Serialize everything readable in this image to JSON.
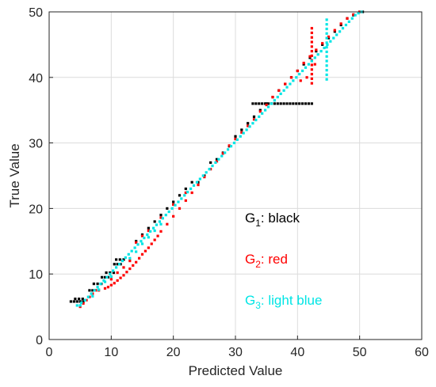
{
  "chart_data": {
    "type": "scatter",
    "xlabel": "Predicted Value",
    "ylabel": "True Value",
    "xlim": [
      0,
      60
    ],
    "ylim": [
      0,
      50
    ],
    "xticks": [
      "0",
      "10",
      "20",
      "30",
      "40",
      "50",
      "60"
    ],
    "yticks": [
      "0",
      "10",
      "20",
      "30",
      "40",
      "50"
    ],
    "grid": true,
    "legend_position": "lower-right",
    "legend": [
      {
        "prefix": "G",
        "sub": "1",
        "text": ": black",
        "color": "#000000"
      },
      {
        "prefix": "G",
        "sub": "2",
        "text": ": red",
        "color": "#ff0000"
      },
      {
        "prefix": "G",
        "sub": "3",
        "text": ": light blue",
        "color": "#00e5e5"
      }
    ],
    "series": [
      {
        "color": "#000000",
        "points": [
          [
            3.5,
            5.8
          ],
          [
            4.0,
            5.8
          ],
          [
            4.5,
            5.8
          ],
          [
            5.0,
            5.8
          ],
          [
            5.5,
            5.8
          ],
          [
            4.2,
            6.2
          ],
          [
            4.8,
            6.2
          ],
          [
            5.4,
            6.2
          ],
          [
            6.5,
            7.5
          ],
          [
            7.0,
            7.5
          ],
          [
            7.5,
            7.5
          ],
          [
            7.2,
            8.5
          ],
          [
            7.8,
            8.5
          ],
          [
            8.4,
            8.5
          ],
          [
            8.5,
            9.5
          ],
          [
            9.0,
            9.5
          ],
          [
            9.5,
            9.5
          ],
          [
            9.2,
            10.2
          ],
          [
            9.8,
            10.2
          ],
          [
            10.4,
            10.2
          ],
          [
            10.5,
            11.5
          ],
          [
            11.0,
            11.5
          ],
          [
            11.5,
            11.5
          ],
          [
            10.8,
            12.2
          ],
          [
            11.4,
            12.2
          ],
          [
            12.0,
            12.2
          ],
          [
            14.0,
            15.0
          ],
          [
            15.0,
            16.0
          ],
          [
            16.0,
            17.0
          ],
          [
            17.0,
            18.0
          ],
          [
            18.0,
            19.0
          ],
          [
            19.0,
            20.0
          ],
          [
            20.0,
            21.0
          ],
          [
            21.0,
            22.0
          ],
          [
            22.0,
            23.0
          ],
          [
            23.0,
            24.0
          ],
          [
            24.0,
            24.0
          ],
          [
            25.0,
            25.0
          ],
          [
            26.0,
            27.0
          ],
          [
            27.0,
            27.5
          ],
          [
            28.0,
            28.5
          ],
          [
            29.0,
            29.5
          ],
          [
            30.0,
            31.0
          ],
          [
            31.0,
            32.0
          ],
          [
            32.0,
            33.0
          ],
          [
            33.0,
            34.0
          ],
          [
            34.0,
            35.0
          ],
          [
            35.0,
            36.0
          ],
          [
            36.0,
            37.0
          ],
          [
            37.0,
            38.0
          ],
          [
            38.0,
            39.0
          ],
          [
            39.0,
            40.0
          ],
          [
            40.0,
            41.0
          ],
          [
            41.0,
            42.0
          ],
          [
            42.0,
            43.0
          ],
          [
            43.0,
            44.0
          ],
          [
            44.0,
            45.0
          ],
          [
            45.0,
            46.0
          ],
          [
            46.0,
            47.0
          ],
          [
            47.0,
            48.0
          ],
          [
            48.0,
            49.0
          ],
          [
            49.0,
            49.5
          ],
          [
            50.0,
            50.0
          ],
          [
            50.5,
            50.0
          ],
          [
            32.8,
            36.0
          ],
          [
            33.3,
            36.0
          ],
          [
            33.8,
            36.0
          ],
          [
            34.3,
            36.0
          ],
          [
            34.8,
            36.0
          ],
          [
            35.3,
            36.0
          ],
          [
            35.8,
            36.0
          ],
          [
            36.3,
            36.0
          ],
          [
            36.8,
            36.0
          ],
          [
            37.3,
            36.0
          ],
          [
            37.8,
            36.0
          ],
          [
            38.3,
            36.0
          ],
          [
            38.8,
            36.0
          ],
          [
            39.3,
            36.0
          ],
          [
            39.8,
            36.0
          ],
          [
            40.3,
            36.0
          ],
          [
            40.8,
            36.0
          ],
          [
            41.3,
            36.0
          ],
          [
            41.8,
            36.0
          ],
          [
            42.3,
            36.0
          ]
        ]
      },
      {
        "color": "#ff0000",
        "points": [
          [
            5.0,
            5.0
          ],
          [
            5.5,
            5.5
          ],
          [
            6.0,
            6.0
          ],
          [
            6.5,
            6.5
          ],
          [
            7.0,
            7.0
          ],
          [
            7.5,
            7.5
          ],
          [
            8.0,
            7.5
          ],
          [
            9.0,
            7.8
          ],
          [
            9.5,
            8.0
          ],
          [
            10.0,
            8.3
          ],
          [
            10.5,
            8.6
          ],
          [
            11.0,
            9.0
          ],
          [
            11.5,
            9.4
          ],
          [
            12.0,
            9.8
          ],
          [
            12.5,
            10.3
          ],
          [
            13.0,
            10.8
          ],
          [
            13.5,
            11.3
          ],
          [
            14.0,
            11.8
          ],
          [
            14.5,
            12.4
          ],
          [
            15.0,
            13.0
          ],
          [
            15.5,
            13.5
          ],
          [
            16.0,
            14.0
          ],
          [
            16.5,
            14.6
          ],
          [
            17.0,
            15.2
          ],
          [
            17.5,
            15.8
          ],
          [
            18.0,
            16.5
          ],
          [
            19.0,
            17.6
          ],
          [
            20.0,
            18.8
          ],
          [
            21.0,
            20.0
          ],
          [
            22.0,
            21.2
          ],
          [
            23.0,
            22.4
          ],
          [
            24.0,
            23.6
          ],
          [
            25.0,
            24.8
          ],
          [
            26.0,
            26.0
          ],
          [
            27.0,
            27.2
          ],
          [
            28.0,
            28.4
          ],
          [
            29.0,
            29.6
          ],
          [
            30.0,
            30.6
          ],
          [
            31.0,
            31.6
          ],
          [
            32.0,
            32.6
          ],
          [
            33.0,
            33.6
          ],
          [
            34.0,
            34.8
          ],
          [
            35.0,
            35.8
          ],
          [
            36.0,
            37.0
          ],
          [
            37.0,
            38.0
          ],
          [
            38.0,
            39.0
          ],
          [
            39.0,
            40.0
          ],
          [
            40.0,
            41.0
          ],
          [
            41.0,
            42.2
          ],
          [
            42.0,
            43.2
          ],
          [
            43.0,
            44.2
          ],
          [
            44.0,
            45.2
          ],
          [
            45.0,
            46.2
          ],
          [
            46.0,
            47.2
          ],
          [
            47.0,
            48.2
          ],
          [
            48.0,
            49.0
          ],
          [
            49.0,
            49.6
          ],
          [
            50.0,
            50.0
          ],
          [
            14.0,
            14.8
          ],
          [
            15.0,
            15.8
          ],
          [
            16.0,
            16.6
          ],
          [
            18.0,
            18.6
          ],
          [
            20.0,
            20.6
          ],
          [
            22.0,
            22.4
          ],
          [
            11.0,
            10.2
          ],
          [
            12.0,
            11.0
          ],
          [
            13.0,
            12.0
          ],
          [
            10.0,
            9.2
          ],
          [
            42.3,
            47.5
          ],
          [
            42.3,
            46.8
          ],
          [
            42.3,
            46.1
          ],
          [
            42.3,
            45.4
          ],
          [
            42.3,
            44.7
          ],
          [
            42.3,
            44.0
          ],
          [
            42.3,
            43.3
          ],
          [
            42.3,
            42.6
          ],
          [
            42.3,
            41.9
          ],
          [
            42.3,
            41.2
          ],
          [
            42.3,
            40.5
          ],
          [
            42.3,
            39.8
          ],
          [
            42.3,
            39.1
          ],
          [
            41.5,
            40.0
          ],
          [
            42.8,
            42.0
          ],
          [
            40.5,
            39.5
          ]
        ]
      },
      {
        "color": "#00e5e5",
        "points": [
          [
            4.5,
            5.2
          ],
          [
            5.0,
            5.2
          ],
          [
            5.2,
            5.6
          ],
          [
            5.8,
            6.0
          ],
          [
            6.3,
            6.5
          ],
          [
            6.8,
            7.0
          ],
          [
            7.3,
            7.5
          ],
          [
            7.8,
            8.0
          ],
          [
            8.3,
            8.5
          ],
          [
            8.8,
            9.0
          ],
          [
            9.3,
            9.5
          ],
          [
            9.8,
            10.0
          ],
          [
            10.3,
            10.5
          ],
          [
            10.8,
            11.0
          ],
          [
            11.3,
            11.5
          ],
          [
            11.8,
            12.0
          ],
          [
            12.3,
            12.5
          ],
          [
            12.8,
            13.0
          ],
          [
            13.3,
            13.5
          ],
          [
            13.8,
            14.0
          ],
          [
            14.3,
            14.5
          ],
          [
            14.8,
            15.0
          ],
          [
            15.3,
            15.5
          ],
          [
            15.8,
            16.0
          ],
          [
            16.3,
            16.5
          ],
          [
            16.8,
            17.0
          ],
          [
            17.3,
            17.5
          ],
          [
            17.8,
            18.0
          ],
          [
            18.3,
            18.5
          ],
          [
            18.8,
            19.0
          ],
          [
            19.3,
            19.5
          ],
          [
            19.8,
            20.0
          ],
          [
            20.3,
            20.5
          ],
          [
            20.8,
            21.0
          ],
          [
            21.3,
            21.5
          ],
          [
            21.8,
            22.0
          ],
          [
            22.3,
            22.5
          ],
          [
            22.8,
            23.0
          ],
          [
            23.3,
            23.5
          ],
          [
            23.8,
            24.0
          ],
          [
            24.3,
            24.5
          ],
          [
            24.8,
            25.0
          ],
          [
            25.3,
            25.5
          ],
          [
            25.8,
            26.0
          ],
          [
            26.3,
            26.5
          ],
          [
            26.8,
            27.0
          ],
          [
            27.3,
            27.5
          ],
          [
            27.8,
            28.0
          ],
          [
            28.3,
            28.5
          ],
          [
            28.8,
            29.0
          ],
          [
            29.3,
            29.5
          ],
          [
            29.8,
            30.0
          ],
          [
            30.3,
            30.5
          ],
          [
            30.8,
            31.0
          ],
          [
            31.3,
            31.5
          ],
          [
            31.8,
            32.0
          ],
          [
            32.3,
            32.5
          ],
          [
            32.8,
            33.0
          ],
          [
            33.3,
            33.5
          ],
          [
            33.8,
            34.0
          ],
          [
            34.3,
            34.5
          ],
          [
            34.8,
            35.0
          ],
          [
            35.3,
            35.5
          ],
          [
            35.8,
            36.0
          ],
          [
            36.3,
            36.5
          ],
          [
            36.8,
            37.0
          ],
          [
            37.3,
            37.5
          ],
          [
            37.8,
            38.0
          ],
          [
            38.3,
            38.5
          ],
          [
            38.8,
            39.0
          ],
          [
            39.3,
            39.5
          ],
          [
            39.8,
            40.0
          ],
          [
            40.3,
            40.5
          ],
          [
            40.8,
            41.0
          ],
          [
            41.3,
            41.5
          ],
          [
            41.8,
            42.0
          ],
          [
            42.3,
            42.5
          ],
          [
            42.8,
            43.0
          ],
          [
            43.3,
            43.5
          ],
          [
            43.8,
            44.0
          ],
          [
            44.3,
            44.5
          ],
          [
            44.8,
            45.0
          ],
          [
            45.3,
            45.5
          ],
          [
            45.8,
            46.0
          ],
          [
            46.3,
            46.5
          ],
          [
            46.8,
            47.0
          ],
          [
            47.3,
            47.5
          ],
          [
            47.8,
            48.0
          ],
          [
            48.3,
            48.5
          ],
          [
            48.8,
            49.0
          ],
          [
            49.3,
            49.5
          ],
          [
            49.8,
            49.8
          ],
          [
            50.3,
            50.0
          ],
          [
            15.0,
            14.6
          ],
          [
            16.0,
            15.6
          ],
          [
            17.0,
            16.6
          ],
          [
            18.0,
            17.6
          ],
          [
            14.0,
            13.4
          ],
          [
            13.0,
            12.4
          ],
          [
            10.0,
            9.6
          ],
          [
            9.0,
            8.8
          ],
          [
            8.0,
            7.6
          ],
          [
            7.0,
            6.6
          ],
          [
            44.7,
            48.8
          ],
          [
            44.7,
            48.1
          ],
          [
            44.7,
            47.4
          ],
          [
            44.7,
            46.7
          ],
          [
            44.7,
            46.0
          ],
          [
            44.7,
            45.3
          ],
          [
            44.7,
            44.6
          ],
          [
            44.7,
            43.9
          ],
          [
            44.7,
            43.2
          ],
          [
            44.7,
            42.5
          ],
          [
            44.7,
            41.8
          ],
          [
            44.7,
            41.1
          ],
          [
            44.7,
            40.4
          ],
          [
            44.7,
            39.7
          ]
        ]
      }
    ]
  }
}
